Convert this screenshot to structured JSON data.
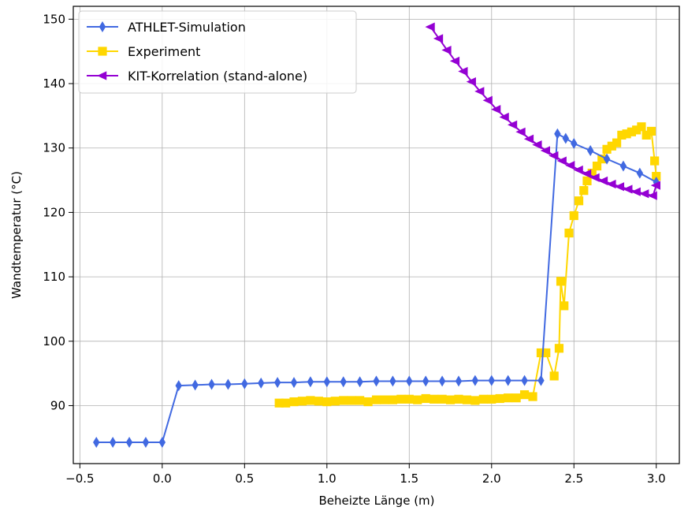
{
  "chart_data": {
    "type": "line",
    "xlabel": "Beheizte Länge (m)",
    "ylabel": "Wandtemperatur (°C)",
    "xlim": [
      -0.54,
      3.14
    ],
    "ylim": [
      81.0,
      152.0
    ],
    "x_ticks": [
      -0.5,
      0.0,
      0.5,
      1.0,
      1.5,
      2.0,
      2.5,
      3.0
    ],
    "x_tick_labels": [
      "−0.5",
      "0.0",
      "0.5",
      "1.0",
      "1.5",
      "2.0",
      "2.5",
      "3.0"
    ],
    "y_ticks": [
      90,
      100,
      110,
      120,
      130,
      140,
      150
    ],
    "y_tick_labels": [
      "90",
      "100",
      "110",
      "120",
      "130",
      "140",
      "150"
    ],
    "grid": true,
    "legend": "top-left",
    "series": [
      {
        "name": "ATHLET-Simulation",
        "color": "#4169e1",
        "marker": "diamond",
        "x": [
          -0.4,
          -0.3,
          -0.2,
          -0.1,
          0.0,
          0.1,
          0.2,
          0.3,
          0.4,
          0.5,
          0.6,
          0.7,
          0.8,
          0.9,
          1.0,
          1.1,
          1.2,
          1.3,
          1.4,
          1.5,
          1.6,
          1.7,
          1.8,
          1.9,
          2.0,
          2.1,
          2.2,
          2.3,
          2.4,
          2.45,
          2.5,
          2.6,
          2.7,
          2.8,
          2.9,
          3.0
        ],
        "y": [
          84.3,
          84.3,
          84.3,
          84.3,
          84.3,
          93.1,
          93.2,
          93.3,
          93.3,
          93.4,
          93.5,
          93.6,
          93.6,
          93.7,
          93.7,
          93.7,
          93.7,
          93.8,
          93.8,
          93.8,
          93.8,
          93.8,
          93.8,
          93.9,
          93.9,
          93.9,
          93.9,
          93.9,
          132.2,
          131.5,
          130.7,
          129.6,
          128.3,
          127.2,
          126.1,
          124.7
        ]
      },
      {
        "name": "Experiment",
        "color": "#ffd700",
        "marker": "square",
        "x": [
          0.71,
          0.75,
          0.8,
          0.85,
          0.9,
          0.95,
          1.0,
          1.05,
          1.1,
          1.15,
          1.2,
          1.25,
          1.3,
          1.35,
          1.4,
          1.45,
          1.5,
          1.55,
          1.6,
          1.65,
          1.7,
          1.75,
          1.8,
          1.85,
          1.9,
          1.95,
          2.0,
          2.05,
          2.1,
          2.15,
          2.2,
          2.25,
          2.3,
          2.33,
          2.38,
          2.41,
          2.42,
          2.44,
          2.47,
          2.5,
          2.53,
          2.56,
          2.58,
          2.61,
          2.64,
          2.67,
          2.7,
          2.73,
          2.76,
          2.79,
          2.82,
          2.85,
          2.88,
          2.91,
          2.94,
          2.97,
          2.99,
          3.0
        ],
        "y": [
          90.4,
          90.4,
          90.6,
          90.7,
          90.8,
          90.7,
          90.6,
          90.7,
          90.8,
          90.8,
          90.8,
          90.6,
          90.9,
          90.9,
          90.9,
          91.0,
          91.0,
          90.9,
          91.1,
          91.0,
          91.0,
          90.9,
          91.0,
          90.9,
          90.8,
          91.0,
          91.0,
          91.1,
          91.2,
          91.2,
          91.7,
          91.4,
          98.2,
          98.2,
          94.6,
          98.9,
          109.3,
          105.5,
          116.8,
          119.5,
          121.8,
          123.4,
          124.9,
          126.1,
          127.2,
          128.3,
          129.8,
          130.3,
          130.8,
          132.0,
          132.2,
          132.5,
          132.8,
          133.3,
          132.0,
          132.6,
          128.0,
          125.6
        ]
      },
      {
        "name": "KIT-Korrelation (stand-alone)",
        "color": "#9400d3",
        "marker": "triangle-left",
        "x": [
          1.63,
          1.68,
          1.73,
          1.78,
          1.83,
          1.88,
          1.93,
          1.98,
          2.03,
          2.08,
          2.13,
          2.18,
          2.23,
          2.28,
          2.33,
          2.38,
          2.43,
          2.48,
          2.53,
          2.58,
          2.63,
          2.68,
          2.73,
          2.78,
          2.83,
          2.88,
          2.93,
          2.98,
          3.0
        ],
        "y": [
          148.8,
          147.0,
          145.2,
          143.5,
          141.9,
          140.3,
          138.8,
          137.4,
          136.0,
          134.8,
          133.6,
          132.5,
          131.4,
          130.5,
          129.6,
          128.8,
          128.0,
          127.3,
          126.6,
          126.0,
          125.4,
          124.9,
          124.4,
          124.0,
          123.6,
          123.2,
          122.9,
          122.6,
          124.2
        ]
      }
    ]
  }
}
